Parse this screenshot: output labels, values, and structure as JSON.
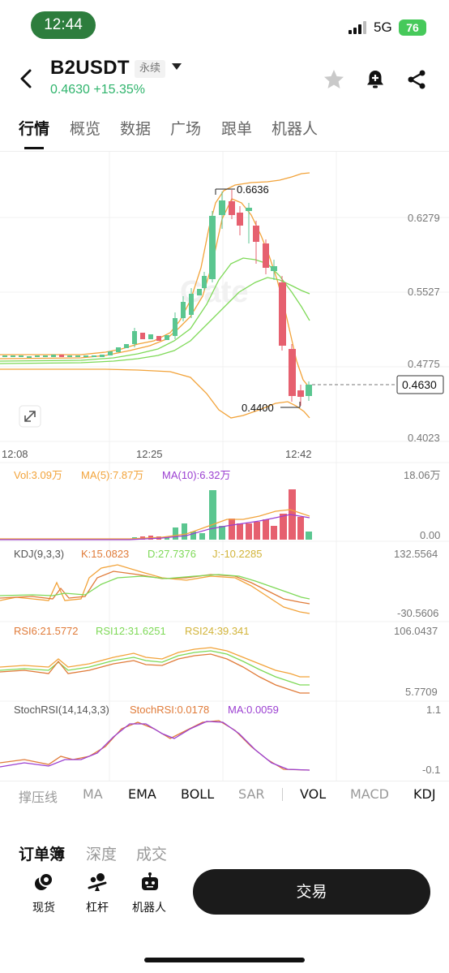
{
  "status_bar": {
    "time": "12:44",
    "network": "5G",
    "battery": "76"
  },
  "header": {
    "symbol": "B2USDT",
    "contract_type": "永续",
    "last_price": "0.4630",
    "change_pct": "+15.35%",
    "icons": [
      "back-icon",
      "star-icon",
      "bell-plus-icon",
      "share-icon"
    ]
  },
  "tabs": [
    {
      "label": "行情",
      "active": true
    },
    {
      "label": "概览"
    },
    {
      "label": "数据"
    },
    {
      "label": "广场"
    },
    {
      "label": "跟单"
    },
    {
      "label": "机器人"
    }
  ],
  "chart": {
    "watermark": "Gate",
    "price_axis": [
      "0.6279",
      "0.5527",
      "0.4775",
      "0.4023"
    ],
    "current_price_tag": "0.4630",
    "high_label": "0.6636",
    "low_label": "0.4400",
    "time_axis": [
      "12:08",
      "12:25",
      "12:42"
    ],
    "colors": {
      "up": "#5bc690",
      "down": "#e6606f",
      "ma": "#f2a33a",
      "boll_mid": "#7ed957"
    }
  },
  "volume": {
    "vol_label": "Vol:3.09万",
    "ma5_label": "MA(5):7.87万",
    "ma10_label": "MA(10):6.32万",
    "axis_top": "18.06万",
    "axis_bottom": "0.00"
  },
  "kdj": {
    "title": "KDJ(9,3,3)",
    "k": "K:15.0823",
    "d": "D:27.7376",
    "j": "J:-10.2285",
    "axis_top": "132.5564",
    "axis_bottom": "-30.5606"
  },
  "rsi": {
    "rsi6": "RSI6:21.5772",
    "rsi12": "RSI12:31.6251",
    "rsi24": "RSI24:39.341",
    "axis_top": "106.0437",
    "axis_bottom": "5.7709"
  },
  "stochrsi": {
    "title": "StochRSI(14,14,3,3)",
    "value": "StochRSI:0.0178",
    "ma": "MA:0.0059",
    "axis_top": "1.1",
    "axis_bottom": "-0.1"
  },
  "indicators": [
    {
      "label": "撑压线"
    },
    {
      "label": "MA"
    },
    {
      "label": "EMA",
      "active": true
    },
    {
      "label": "BOLL",
      "active": true
    },
    {
      "label": "SAR"
    },
    {
      "label": "VOL",
      "active": true
    },
    {
      "label": "MACD"
    },
    {
      "label": "KDJ",
      "active": true
    }
  ],
  "bottom_tabs": [
    {
      "label": "订单簿",
      "active": true
    },
    {
      "label": "深度"
    },
    {
      "label": "成交"
    }
  ],
  "bottom_actions": [
    {
      "label": "现货",
      "icon": "spot-icon"
    },
    {
      "label": "杠杆",
      "icon": "leverage-icon"
    },
    {
      "label": "机器人",
      "icon": "robot-icon"
    }
  ],
  "trade_button": "交易"
}
